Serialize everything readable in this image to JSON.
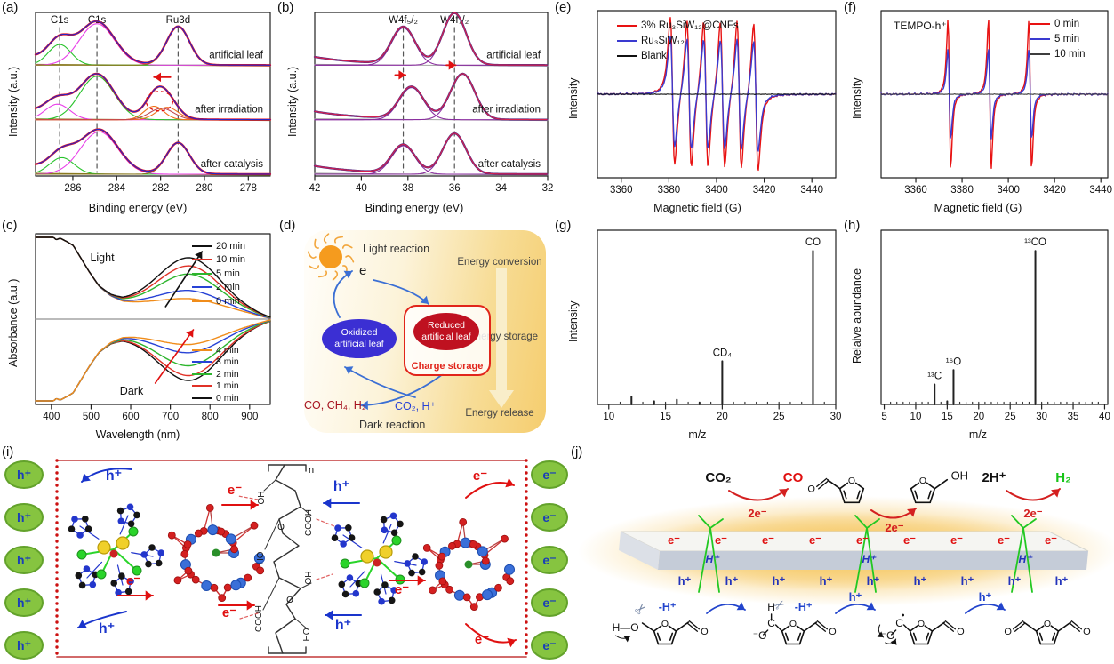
{
  "panel_letters": {
    "a": "(a)",
    "b": "(b)",
    "c": "(c)",
    "d": "(d)",
    "e": "(e)",
    "f": "(f)",
    "g": "(g)",
    "h": "(h)",
    "i": "(i)",
    "j": "(j)"
  },
  "chart_data": [
    {
      "panel": "a",
      "type": "line",
      "subtype": "xps",
      "xlabel": "Binding energy (eV)",
      "ylabel": "Intensity (a.u.)",
      "x_range": [
        287.7,
        277.0
      ],
      "x_reversed": true,
      "xticks": [
        286,
        284,
        282,
        280,
        278
      ],
      "envelope_color": "#2626c9",
      "fit_color": "#e01020",
      "baseline_color": "#8a7a20",
      "guides": [
        {
          "label": "C1s",
          "x": 286.6
        },
        {
          "label": "C1s",
          "x": 284.9
        },
        {
          "label": "Ru3d",
          "x": 281.2
        }
      ],
      "traces": [
        {
          "label": "artificial leaf",
          "components": [
            {
              "center": 286.6,
              "width": 0.52,
              "height": 0.4,
              "color": "#28c32b"
            },
            {
              "center": 284.9,
              "width": 0.8,
              "height": 0.8,
              "color": "#e83ee8"
            },
            {
              "center": 281.2,
              "width": 0.52,
              "height": 0.74,
              "color": "#8a7a20"
            }
          ]
        },
        {
          "label": "after irradiation",
          "shift_arrow": {
            "x1": 281.55,
            "x2": 282.3,
            "yfrac": 0.78
          },
          "circle": {
            "x": 282.05,
            "yfrac": 0.34
          },
          "components": [
            {
              "center": 286.7,
              "width": 0.56,
              "height": 0.3,
              "color": "#e83ee8"
            },
            {
              "center": 284.9,
              "width": 0.78,
              "height": 0.84,
              "color": "#28c32b"
            },
            {
              "center": 282.3,
              "width": 0.45,
              "height": 0.26,
              "color": "#f07018"
            },
            {
              "center": 281.7,
              "width": 0.5,
              "height": 0.24,
              "color": "#f07018"
            },
            {
              "center": 281.95,
              "width": 0.55,
              "height": 0.22,
              "color": "#c2484e"
            }
          ]
        },
        {
          "label": "after catalysis",
          "components": [
            {
              "center": 286.5,
              "width": 0.56,
              "height": 0.32,
              "color": "#28c32b"
            },
            {
              "center": 284.8,
              "width": 0.85,
              "height": 0.82,
              "color": "#e83ee8"
            },
            {
              "center": 281.2,
              "width": 0.52,
              "height": 0.6,
              "color": "#8a7a20"
            }
          ]
        }
      ]
    },
    {
      "panel": "b",
      "type": "line",
      "subtype": "xps",
      "xlabel": "Binding energy (eV)",
      "ylabel": "Intensity (a.u.)",
      "x_range": [
        42,
        32
      ],
      "x_reversed": true,
      "xticks": [
        42,
        40,
        38,
        36,
        34,
        32
      ],
      "envelope_color": "#d6204e",
      "fit_color": "#5a2d82",
      "baseline_color": "#999999",
      "guides": [
        {
          "label": "W4f₅/₂",
          "x": 38.2
        },
        {
          "label": "W4f₇/₂",
          "x": 36.0
        }
      ],
      "traces": [
        {
          "label": "artificial leaf",
          "components": [
            {
              "center": 38.2,
              "width": 0.5,
              "height": 0.72,
              "color": "#8b2fa0"
            },
            {
              "center": 36.0,
              "width": 0.5,
              "height": 1.0,
              "color": "#8b2fa0"
            }
          ]
        },
        {
          "label": "after irradiation",
          "shift_arrows": [
            {
              "x1": 38.55,
              "x2": 38.1,
              "yfrac": 0.82
            },
            {
              "x1": 36.35,
              "x2": 35.95,
              "yfrac": 1.0
            }
          ],
          "components": [
            {
              "center": 37.85,
              "width": 0.52,
              "height": 0.62,
              "color": "#8b2fa0"
            },
            {
              "center": 35.65,
              "width": 0.52,
              "height": 0.88,
              "color": "#8b2fa0"
            }
          ]
        },
        {
          "label": "after catalysis",
          "components": [
            {
              "center": 38.2,
              "width": 0.5,
              "height": 0.55,
              "color": "#8b2fa0"
            },
            {
              "center": 36.0,
              "width": 0.5,
              "height": 0.78,
              "color": "#8b2fa0"
            }
          ]
        }
      ]
    },
    {
      "panel": "c",
      "type": "line",
      "subtype": "uvvis",
      "xlabel": "Wavelength (nm)",
      "ylabel": "Absorbance (a.u.)",
      "x_range": [
        360,
        952
      ],
      "xticks": [
        400,
        500,
        600,
        700,
        800,
        900
      ],
      "base_curve": [
        [
          360,
          1.6
        ],
        [
          378,
          1.35
        ],
        [
          395,
          1.05
        ],
        [
          412,
          0.97
        ],
        [
          422,
          0.99
        ],
        [
          438,
          0.95
        ],
        [
          455,
          0.9
        ],
        [
          470,
          0.78
        ],
        [
          495,
          0.58
        ],
        [
          520,
          0.4
        ],
        [
          550,
          0.28
        ],
        [
          580,
          0.21
        ],
        [
          610,
          0.19
        ],
        [
          650,
          0.175
        ],
        [
          700,
          0.16
        ],
        [
          750,
          0.15
        ],
        [
          800,
          0.13
        ],
        [
          850,
          0.1
        ],
        [
          900,
          0.06
        ],
        [
          952,
          0.005
        ]
      ],
      "peak": {
        "center": 748,
        "sigma": 78
      },
      "regions": [
        {
          "label": "Light",
          "arrow_color": "#111111",
          "series": [
            {
              "label": "20 min",
              "color": "#111111",
              "amp": 0.6
            },
            {
              "label": "10 min",
              "color": "#e03127",
              "amp": 0.5
            },
            {
              "label": "5 min",
              "color": "#2db52d",
              "amp": 0.4
            },
            {
              "label": "2 min",
              "color": "#2742d6",
              "amp": 0.2
            },
            {
              "label": "0 min",
              "color": "#f08c1a",
              "amp": 0.1
            }
          ]
        },
        {
          "label": "Dark",
          "arrow_color": "#e01010",
          "series": [
            {
              "label": "4 min",
              "color": "#f08c1a",
              "amp": 0.16
            },
            {
              "label": "3 min",
              "color": "#2742d6",
              "amp": 0.26
            },
            {
              "label": "2 min",
              "color": "#2db52d",
              "amp": 0.42
            },
            {
              "label": "1 min",
              "color": "#e03127",
              "amp": 0.54
            },
            {
              "label": "0 min",
              "color": "#111111",
              "amp": 0.6
            }
          ]
        }
      ]
    },
    {
      "panel": "e",
      "type": "line",
      "subtype": "epr",
      "xlabel": "Magnetic field (G)",
      "ylabel": "Intensity",
      "x_range": [
        3350,
        3450
      ],
      "xticks": [
        3360,
        3380,
        3400,
        3420,
        3440
      ],
      "centers": [
        3381.5,
        3388.5,
        3395.5,
        3402.5,
        3409.5,
        3416.5
      ],
      "linewidth": 1.6,
      "legend_pos": "top-left",
      "series": [
        {
          "label": "3% Ru₃SiW₁₂@CNFs",
          "color": "#e81212",
          "amp": 1.0
        },
        {
          "label": "Ru₃SiW₁₂",
          "color": "#3a3ad0",
          "amp": 0.75
        },
        {
          "label": "Blank",
          "color": "#111111",
          "amp": 0.0
        }
      ]
    },
    {
      "panel": "f",
      "type": "line",
      "subtype": "epr",
      "annotation": "TEMPO-h⁺",
      "xlabel": "Magnetic field (G)",
      "ylabel": "Intensity",
      "x_range": [
        3345,
        3443
      ],
      "xticks": [
        3360,
        3380,
        3400,
        3420,
        3440
      ],
      "centers": [
        3374.5,
        3392.0,
        3409.5
      ],
      "linewidth": 1.0,
      "legend_pos": "top-right",
      "series": [
        {
          "label": "0 min",
          "color": "#e81212",
          "amp": 1.0
        },
        {
          "label": "5 min",
          "color": "#3a3ad0",
          "amp": 0.6
        },
        {
          "label": "10 min",
          "color": "#3d3d3d",
          "amp": 0.0
        }
      ]
    },
    {
      "panel": "g",
      "type": "bar",
      "subtype": "ms",
      "xlabel": "m/z",
      "ylabel": "Intensity",
      "x_range": [
        9,
        30
      ],
      "xticks": [
        10,
        15,
        20,
        25,
        30
      ],
      "peaks": [
        {
          "mz": 12,
          "rel": 0.05
        },
        {
          "mz": 14,
          "rel": 0.02
        },
        {
          "mz": 16,
          "rel": 0.03
        },
        {
          "mz": 18,
          "rel": 0.012
        },
        {
          "mz": 20,
          "rel": 0.27,
          "label": "CD₄"
        },
        {
          "mz": 28,
          "rel": 0.96,
          "label": "CO"
        }
      ],
      "minor": [
        11,
        13,
        15,
        17,
        19,
        21,
        22,
        23,
        24,
        25,
        26,
        27,
        29
      ]
    },
    {
      "panel": "h",
      "type": "bar",
      "subtype": "ms",
      "xlabel": "m/z",
      "ylabel": "Relaive abundance",
      "x_range": [
        4.5,
        40.5
      ],
      "xticks": [
        5,
        10,
        15,
        20,
        25,
        30,
        35,
        40
      ],
      "peaks": [
        {
          "mz": 13,
          "rel": 0.125,
          "label": "¹³C"
        },
        {
          "mz": 15,
          "rel": 0.02
        },
        {
          "mz": 16,
          "rel": 0.215,
          "label": "¹⁶O"
        },
        {
          "mz": 29,
          "rel": 0.96,
          "label": "¹³CO"
        }
      ],
      "minor": [
        6,
        7,
        8,
        9,
        10,
        11,
        12,
        14,
        17,
        18,
        19,
        20,
        21,
        22,
        23,
        24,
        25,
        26,
        27,
        28,
        30,
        31,
        32,
        33,
        34,
        35,
        36,
        37,
        38,
        39
      ]
    }
  ],
  "diagram_d": {
    "light_reaction": "Light reaction",
    "electron": "e⁻",
    "energy_labels": [
      "Energy conversion",
      "Energy storage",
      "Energy release"
    ],
    "oxidized_line1": "Oxidized",
    "oxidized_line2": "artificial leaf",
    "reduced_line1": "Reduced",
    "reduced_line2": "artificial leaf",
    "charge_storage": "Charge storage",
    "products": "CO, CH₄, H₂",
    "reactants": "CO₂, H⁺",
    "dark_reaction": "Dark reaction",
    "colors": {
      "oxidized": "#3b2fd3",
      "reduced": "#bf1120",
      "box_border": "#e1251b",
      "products": "#a6121f",
      "reactants": "#2742d6",
      "arrow": "#3b6fd4",
      "sun": "#f59b1e"
    }
  },
  "diagram_i": {
    "hole": "h⁺",
    "electron": "e⁻",
    "left_count": 5,
    "right_count": 5,
    "polymer": {
      "repeat": "n",
      "link": "O",
      "side_labels": [
        "OH",
        "COOH",
        "HO",
        "OH",
        "COOH",
        "HO"
      ]
    },
    "colors": {
      "carrier_fill": "#86c440",
      "carrier_stroke": "#63a22b",
      "carrier_text": "#1a3fb8",
      "frame": "#cc5555",
      "dots": "#cc1111",
      "electron": "#e01010",
      "hole": "#1a35cc"
    }
  },
  "diagram_j": {
    "reactions": [
      {
        "reactant": "CO₂",
        "product": "CO",
        "electrons": "2e⁻",
        "reactant_color": "#111111",
        "product_color": "#e01010"
      },
      {
        "product_group": "OH",
        "electrons": "2e⁻"
      },
      {
        "reactant": "2H⁺",
        "product": "H₂",
        "electrons": "2e⁻",
        "reactant_color": "#111111",
        "product_color": "#18c418"
      }
    ],
    "slab": {
      "electron": "e⁻",
      "electron_count": 9,
      "hole": "h⁺",
      "hole_count": 9,
      "proton": "H⁺",
      "proton_count": 3
    },
    "mechanism": {
      "minus_h": "-H⁺",
      "hole": "h⁺",
      "h_o": "H—O",
      "h": "H",
      "c": "C",
      "o": "O",
      "o_minus": "⁻O",
      "oh": "OH"
    },
    "colors": {
      "electron": "#e01010",
      "hole": "#2233bb",
      "proton": "#2233bb",
      "arrow": "#d42020",
      "mech_arrow": "#2244cc",
      "green": "#22c822",
      "glow": "#f6c863"
    }
  }
}
